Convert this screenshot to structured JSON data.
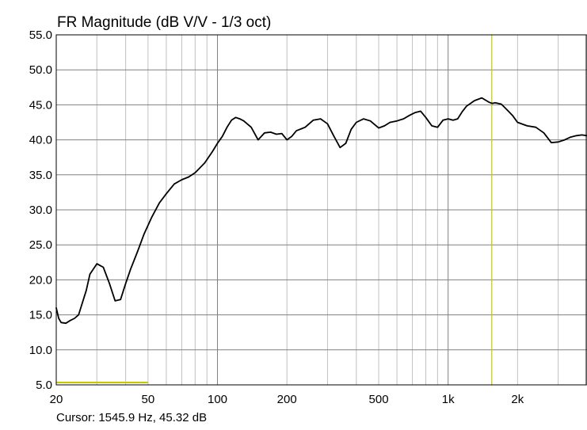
{
  "chart_data": {
    "type": "line",
    "title": "FR Magnitude (dB V/V - 1/3 oct)",
    "xlabel": "",
    "ylabel": "",
    "x_scale": "log",
    "xlim": [
      20,
      4000
    ],
    "ylim": [
      5.0,
      55.0
    ],
    "grid": true,
    "x_tick_labels": [
      {
        "value": 20,
        "label": "20"
      },
      {
        "value": 50,
        "label": "50"
      },
      {
        "value": 100,
        "label": "100"
      },
      {
        "value": 200,
        "label": "200"
      },
      {
        "value": 500,
        "label": "500"
      },
      {
        "value": 1000,
        "label": "1k"
      },
      {
        "value": 2000,
        "label": "2k"
      }
    ],
    "y_tick_labels": [
      "5.0",
      "10.0",
      "15.0",
      "20.0",
      "25.0",
      "30.0",
      "35.0",
      "40.0",
      "45.0",
      "50.0",
      "55.0"
    ],
    "series": [
      {
        "color": "#000000",
        "x": [
          20,
          20.5,
          21,
          22,
          23,
          24,
          25,
          27,
          28,
          30,
          32,
          34,
          36,
          38,
          40,
          42,
          45,
          48,
          52,
          56,
          60,
          65,
          70,
          75,
          80,
          88,
          95,
          100,
          105,
          110,
          115,
          120,
          125,
          130,
          140,
          150,
          160,
          170,
          180,
          190,
          200,
          210,
          220,
          240,
          260,
          280,
          300,
          320,
          340,
          360,
          380,
          400,
          430,
          460,
          500,
          530,
          560,
          600,
          640,
          680,
          720,
          760,
          800,
          850,
          900,
          950,
          1000,
          1050,
          1100,
          1150,
          1200,
          1300,
          1400,
          1500,
          1550,
          1600,
          1700,
          1800,
          1900,
          2000,
          2200,
          2400,
          2600,
          2800,
          3000,
          3200,
          3400,
          3600,
          3800,
          4000
        ],
        "y": [
          16.0,
          14.5,
          13.9,
          13.8,
          14.2,
          14.5,
          15.0,
          18.5,
          20.8,
          22.3,
          21.8,
          19.5,
          17.0,
          17.2,
          19.5,
          21.5,
          24.0,
          26.5,
          29.0,
          31.0,
          32.3,
          33.7,
          34.3,
          34.7,
          35.3,
          36.7,
          38.3,
          39.5,
          40.5,
          41.8,
          42.8,
          43.2,
          43.0,
          42.7,
          41.8,
          40.0,
          41.0,
          41.1,
          40.8,
          40.9,
          40.0,
          40.5,
          41.3,
          41.8,
          42.8,
          43.0,
          42.3,
          40.5,
          38.9,
          39.5,
          41.5,
          42.5,
          43.0,
          42.7,
          41.7,
          42.0,
          42.5,
          42.7,
          43.0,
          43.5,
          43.9,
          44.1,
          43.2,
          42.0,
          41.8,
          42.8,
          43.0,
          42.8,
          43.0,
          44.0,
          44.8,
          45.6,
          46.0,
          45.4,
          45.2,
          45.3,
          45.1,
          44.3,
          43.5,
          42.5,
          42.0,
          41.8,
          41.0,
          39.6,
          39.7,
          40.0,
          40.4,
          40.6,
          40.7,
          40.6
        ]
      }
    ],
    "cursor": {
      "x": 1545.9,
      "y": 45.32,
      "color": "#c8c800"
    },
    "marker_color": "#c8c800",
    "grid_color": "#c0c0c0",
    "major_grid_color": "#808080"
  },
  "cursor_readout": "Cursor: 1545.9 Hz, 45.32 dB"
}
